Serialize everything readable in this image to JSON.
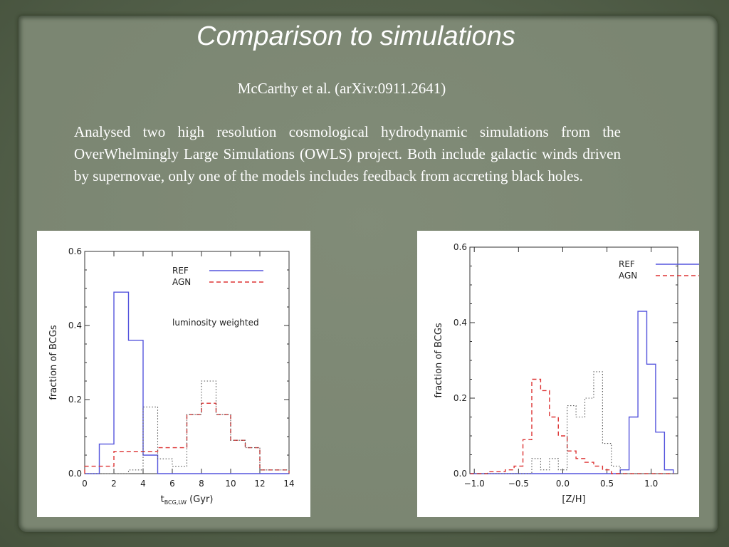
{
  "slide": {
    "title": "Comparison to simulations",
    "reference": "McCarthy et al. (arXiv:0911.2641)",
    "body": "Analysed two high resolution cosmological hydrodynamic simulations from the OverWhelmingly  Large Simulations (OWLS) project. Both include galactic winds driven by supernovae, only one of the models includes feedback from accreting black holes."
  },
  "colors": {
    "ref": "#5555dd",
    "agn": "#dd3333",
    "dotted": "#555555"
  },
  "chart_data": [
    {
      "type": "histogram",
      "ylabel": "fraction of BCGs",
      "xlabel_main": "t",
      "xlabel_sub": "BCG,LW",
      "xlabel_unit": " (Gyr)",
      "annotation": "luminosity weighted",
      "xlim": [
        0,
        14
      ],
      "ylim": [
        0,
        0.6
      ],
      "xticks": [
        0,
        2,
        4,
        6,
        8,
        10,
        12,
        14
      ],
      "xtick_labels": [
        "0",
        "2",
        "4",
        "6",
        "8",
        "10",
        "12",
        "14"
      ],
      "yticks": [
        0,
        0.2,
        0.4,
        0.6
      ],
      "ytick_labels": [
        "0.0",
        "0.2",
        "0.4",
        "0.6"
      ],
      "bin_edges": [
        0,
        1,
        2,
        3,
        4,
        5,
        6,
        7,
        8,
        9,
        10,
        11,
        12,
        13,
        14
      ],
      "series": [
        {
          "name": "REF",
          "style": "solid",
          "values": [
            0.0,
            0.08,
            0.49,
            0.36,
            0.05,
            0.0,
            0.0,
            0.0,
            0.0,
            0.0,
            0.0,
            0.0,
            0.0,
            0.0
          ]
        },
        {
          "name": "AGN",
          "style": "dashed",
          "values": [
            0.02,
            0.02,
            0.06,
            0.06,
            0.06,
            0.07,
            0.07,
            0.16,
            0.19,
            0.16,
            0.09,
            0.07,
            0.01,
            0.01
          ]
        },
        {
          "name": "",
          "style": "dotted",
          "values": [
            0.0,
            0.0,
            0.0,
            0.01,
            0.18,
            0.04,
            0.02,
            0.16,
            0.25,
            0.16,
            0.09,
            0.07,
            0.01,
            0.01
          ]
        }
      ]
    },
    {
      "type": "histogram",
      "ylabel": "fraction of BCGs",
      "xlabel": "[Z/H]",
      "xlim": [
        -1.05,
        1.3
      ],
      "ylim": [
        0,
        0.6
      ],
      "xticks": [
        -1.0,
        -0.5,
        0.0,
        0.5,
        1.0
      ],
      "xtick_labels": [
        "−1.0",
        "−0.5",
        "0.0",
        "0.5",
        "1.0"
      ],
      "yticks": [
        0,
        0.2,
        0.4,
        0.6
      ],
      "ytick_labels": [
        "0.0",
        "0.2",
        "0.4",
        "0.6"
      ],
      "bin_edges": [
        -1.05,
        -0.95,
        -0.85,
        -0.75,
        -0.65,
        -0.55,
        -0.45,
        -0.35,
        -0.25,
        -0.15,
        -0.05,
        0.05,
        0.15,
        0.25,
        0.35,
        0.45,
        0.55,
        0.65,
        0.75,
        0.85,
        0.95,
        1.05,
        1.15,
        1.25
      ],
      "series": [
        {
          "name": "REF",
          "style": "solid",
          "values": [
            0,
            0,
            0,
            0,
            0,
            0,
            0,
            0,
            0,
            0,
            0,
            0,
            0,
            0,
            0,
            0,
            0,
            0.01,
            0.15,
            0.43,
            0.29,
            0.11,
            0.01
          ]
        },
        {
          "name": "AGN",
          "style": "dashed",
          "values": [
            0,
            0,
            0.005,
            0.005,
            0.01,
            0.02,
            0.09,
            0.25,
            0.22,
            0.15,
            0.1,
            0.06,
            0.04,
            0.03,
            0.02,
            0.01,
            0.0,
            0,
            0,
            0,
            0,
            0,
            0
          ]
        },
        {
          "name": "",
          "style": "dotted",
          "values": [
            0,
            0,
            0,
            0,
            0,
            0,
            0,
            0.04,
            0.01,
            0.04,
            0.01,
            0.18,
            0.15,
            0.2,
            0.27,
            0.08,
            0.02,
            0,
            0,
            0,
            0,
            0,
            0
          ]
        }
      ]
    }
  ]
}
